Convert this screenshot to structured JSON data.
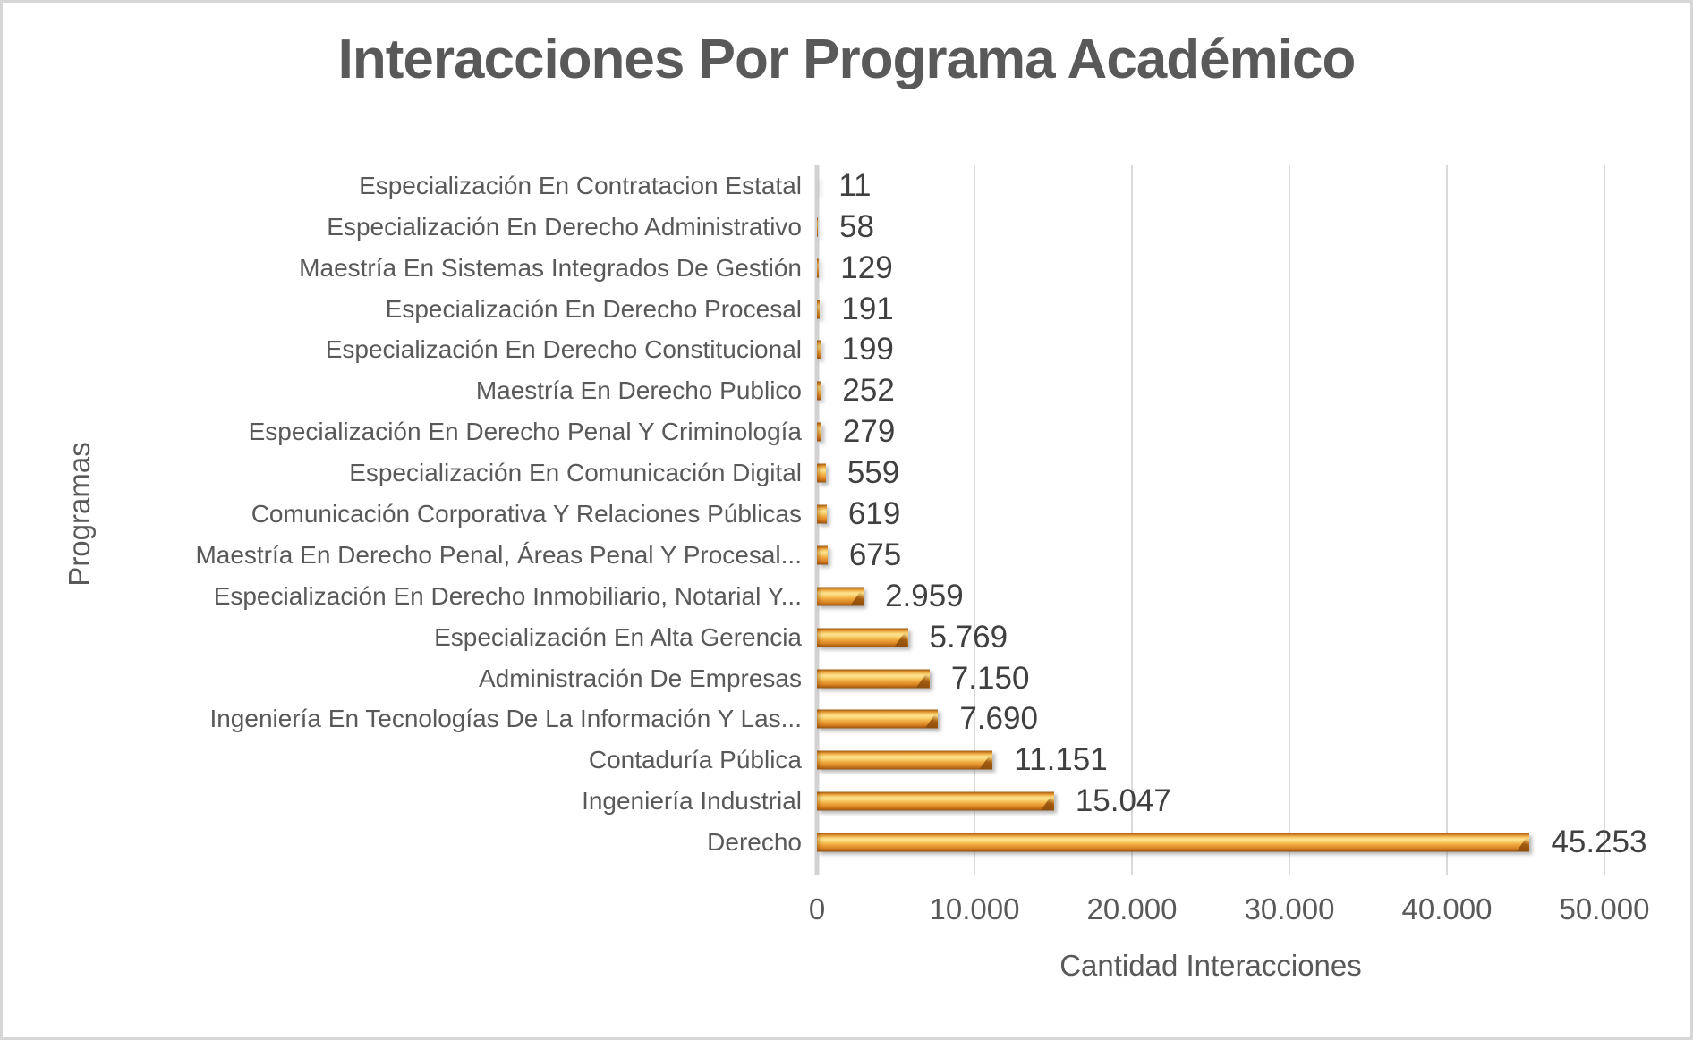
{
  "chart_data": {
    "type": "bar",
    "orientation": "horizontal",
    "title": "Interacciones Por Programa Académico",
    "xlabel": "Cantidad Interacciones",
    "ylabel": "Programas",
    "xlim": [
      0,
      50000
    ],
    "x_tick_labels": [
      "0",
      "10.000",
      "20.000",
      "30.000",
      "40.000",
      "50.000"
    ],
    "grid": true,
    "legend": false,
    "categories": [
      "Especialización En Contratacion Estatal",
      "Especialización En Derecho Administrativo",
      "Maestría En Sistemas Integrados De Gestión",
      "Especialización En Derecho Procesal",
      "Especialización En Derecho Constitucional",
      "Maestría En Derecho Publico",
      "Especialización En Derecho Penal Y Criminología",
      "Especialización En Comunicación Digital",
      "Comunicación Corporativa Y Relaciones Públicas",
      "Maestría En Derecho Penal, Áreas Penal Y Procesal...",
      "Especialización En Derecho Inmobiliario, Notarial Y...",
      "Especialización En Alta Gerencia",
      "Administración De Empresas",
      "Ingeniería En Tecnologías De La Información Y Las...",
      "Contaduría Pública",
      "Ingeniería Industrial",
      "Derecho"
    ],
    "values": [
      11,
      58,
      129,
      191,
      199,
      252,
      279,
      559,
      619,
      675,
      2959,
      5769,
      7150,
      7690,
      11151,
      15047,
      45253
    ],
    "value_labels": [
      "11",
      "58",
      "129",
      "191",
      "199",
      "252",
      "279",
      "559",
      "619",
      "675",
      "2.959",
      "5.769",
      "7.150",
      "7.690",
      "11.151",
      "15.047",
      "45.253"
    ],
    "colors": {
      "bar": "#e8a33d",
      "bar_highlight": "#fce291",
      "bar_shadow_edge": "#96540f",
      "gridline": "#dadada",
      "axis_line": "#d2d2d2",
      "title_text": "#595959",
      "axis_text": "#595959",
      "value_text": "#404040",
      "frame_border": "#d6d6d6",
      "background": "#ffffff"
    }
  }
}
